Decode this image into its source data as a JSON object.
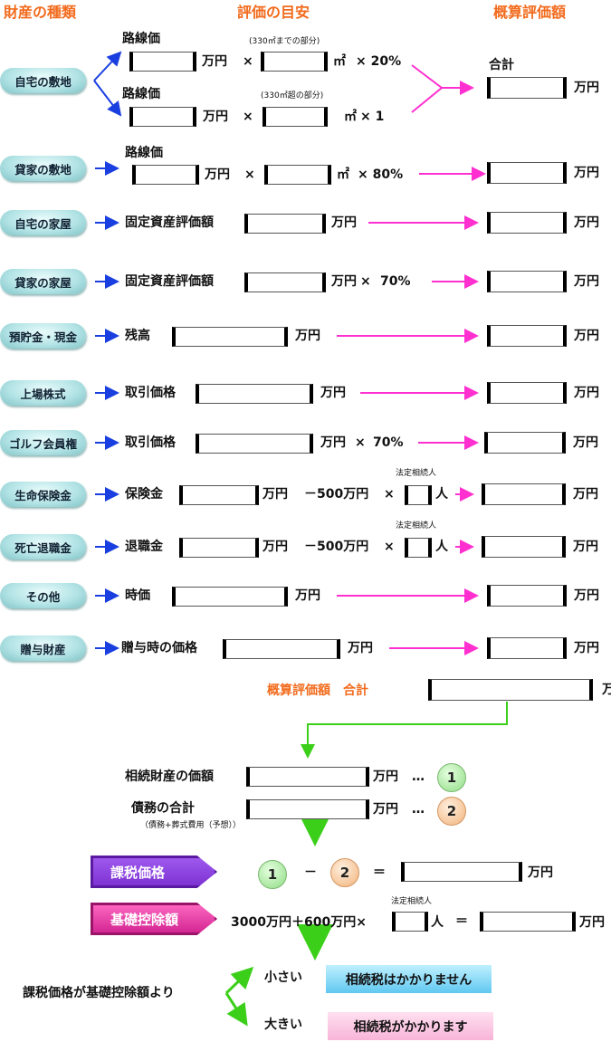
{
  "headers": {
    "type": "財産の種類",
    "guide": "評価の目安",
    "estimate": "概算評価額"
  },
  "common": {
    "unit": "万円",
    "times": "×",
    "sqm": "㎡",
    "person": "人",
    "heirs": "法定相続人",
    "minus500": "－500万円",
    "dots": "…",
    "equals": "＝",
    "minus": "－"
  },
  "rows": {
    "home_land": {
      "label": "自宅の敷地",
      "price_label": "路線価",
      "note1": "(330㎡までの部分)",
      "rate1": "× 20%",
      "note2": "(330㎡超の部分)",
      "rate2": "× 1",
      "total_label": "合計"
    },
    "rental_land": {
      "label": "貸家の敷地",
      "price_label": "路線価",
      "rate": "× 80%"
    },
    "home_house": {
      "label": "自宅の家屋",
      "basis": "固定資産評価額"
    },
    "rental_house": {
      "label": "貸家の家屋",
      "basis": "固定資産評価額",
      "rate": "70%"
    },
    "savings": {
      "label": "預貯金・現金",
      "basis": "残高"
    },
    "stocks": {
      "label": "上場株式",
      "basis": "取引価格"
    },
    "golf": {
      "label": "ゴルフ会員権",
      "basis": "取引価格",
      "rate": "70%"
    },
    "life_insurance": {
      "label": "生命保険金",
      "basis": "保険金"
    },
    "retirement": {
      "label": "死亡退職金",
      "basis": "退職金"
    },
    "other": {
      "label": "その他",
      "basis": "時価"
    },
    "gift": {
      "label": "贈与財産",
      "basis": "贈与時の価格"
    }
  },
  "total": {
    "label": "概算評価額　合計"
  },
  "summary": {
    "estate_label": "相続財産の価額",
    "debt_label": "債務の合計",
    "debt_note": "（債務+葬式費用（予想））",
    "circle1": "1",
    "circle2": "2",
    "taxable_badge": "課税価格",
    "deduction_badge": "基礎控除額",
    "deduction_formula": "3000万円＋600万円×",
    "compare_label": "課税価格が基礎控除額より",
    "smaller": "小さい",
    "smaller_result": "相続税はかかりません",
    "larger": "大きい",
    "larger_result": "相続税がかかります"
  },
  "colors": {
    "heading": "#f26b1d",
    "blue_arrow": "#1a3fe0",
    "pink_arrow": "#ff2fd0",
    "green_arrow": "#3ccf1a"
  }
}
